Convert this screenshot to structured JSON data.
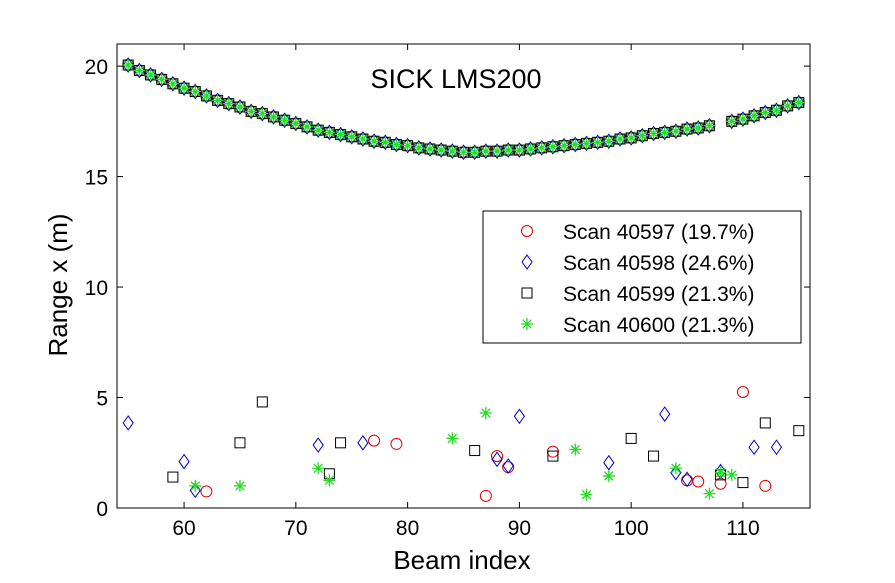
{
  "chart_data": {
    "type": "scatter",
    "title": "SICK LMS200",
    "xlabel": "Beam index",
    "ylabel": "Range x (m)",
    "xlim": [
      54,
      116
    ],
    "ylim": [
      0,
      21
    ],
    "xticks": [
      60,
      70,
      80,
      90,
      100,
      110
    ],
    "yticks": [
      0,
      5,
      10,
      15,
      20
    ],
    "legend_position": "center-right",
    "main_curve_range": [
      [
        55,
        20.05
      ],
      [
        56,
        19.8
      ],
      [
        57,
        19.6
      ],
      [
        58,
        19.4
      ],
      [
        59,
        19.2
      ],
      [
        60,
        19.0
      ],
      [
        61,
        18.85
      ],
      [
        62,
        18.65
      ],
      [
        63,
        18.45
      ],
      [
        64,
        18.3
      ],
      [
        65,
        18.15
      ],
      [
        66,
        17.95
      ],
      [
        67,
        17.85
      ],
      [
        68,
        17.7
      ],
      [
        69,
        17.55
      ],
      [
        70,
        17.4
      ],
      [
        71,
        17.25
      ],
      [
        72,
        17.1
      ],
      [
        73,
        17.0
      ],
      [
        74,
        16.9
      ],
      [
        75,
        16.8
      ],
      [
        76,
        16.7
      ],
      [
        77,
        16.6
      ],
      [
        78,
        16.55
      ],
      [
        79,
        16.45
      ],
      [
        80,
        16.4
      ],
      [
        81,
        16.3
      ],
      [
        82,
        16.25
      ],
      [
        83,
        16.2
      ],
      [
        84,
        16.15
      ],
      [
        85,
        16.1
      ],
      [
        86,
        16.1
      ],
      [
        87,
        16.15
      ],
      [
        88,
        16.15
      ],
      [
        89,
        16.2
      ],
      [
        90,
        16.2
      ],
      [
        91,
        16.25
      ],
      [
        92,
        16.3
      ],
      [
        93,
        16.35
      ],
      [
        94,
        16.4
      ],
      [
        95,
        16.45
      ],
      [
        96,
        16.5
      ],
      [
        97,
        16.55
      ],
      [
        98,
        16.6
      ],
      [
        99,
        16.7
      ],
      [
        100,
        16.75
      ],
      [
        101,
        16.85
      ],
      [
        102,
        16.95
      ],
      [
        103,
        17.0
      ],
      [
        104,
        17.05
      ],
      [
        105,
        17.15
      ],
      [
        106,
        17.2
      ],
      [
        107,
        17.3
      ],
      [
        109,
        17.5
      ],
      [
        110,
        17.6
      ],
      [
        111,
        17.75
      ],
      [
        112,
        17.9
      ],
      [
        113,
        18.0
      ],
      [
        114,
        18.2
      ],
      [
        115,
        18.35
      ]
    ],
    "series": [
      {
        "name": "Scan 40597 (19.7%)",
        "marker": "circle",
        "color": "#e00000",
        "outliers": [
          [
            62,
            0.75
          ],
          [
            77,
            3.05
          ],
          [
            79,
            2.9
          ],
          [
            87,
            0.55
          ],
          [
            88,
            2.35
          ],
          [
            89,
            1.85
          ],
          [
            93,
            2.55
          ],
          [
            105,
            1.25
          ],
          [
            106,
            1.2
          ],
          [
            108,
            1.1
          ],
          [
            110,
            5.25
          ],
          [
            112,
            1.0
          ]
        ]
      },
      {
        "name": "Scan 40598 (24.6%)",
        "marker": "diamond",
        "color": "#0000cc",
        "outliers": [
          [
            55,
            3.85
          ],
          [
            60,
            2.1
          ],
          [
            61,
            0.8
          ],
          [
            72,
            2.85
          ],
          [
            76,
            2.95
          ],
          [
            88,
            2.2
          ],
          [
            89,
            1.9
          ],
          [
            90,
            4.15
          ],
          [
            98,
            2.05
          ],
          [
            103,
            4.25
          ],
          [
            104,
            1.6
          ],
          [
            105,
            1.3
          ],
          [
            108,
            1.65
          ],
          [
            111,
            2.75
          ],
          [
            113,
            2.75
          ]
        ]
      },
      {
        "name": "Scan 40599 (21.3%)",
        "marker": "square",
        "color": "#000000",
        "outliers": [
          [
            59,
            1.4
          ],
          [
            65,
            2.95
          ],
          [
            67,
            4.8
          ],
          [
            73,
            1.55
          ],
          [
            74,
            2.95
          ],
          [
            86,
            2.6
          ],
          [
            93,
            2.35
          ],
          [
            100,
            3.15
          ],
          [
            102,
            2.35
          ],
          [
            108,
            1.5
          ],
          [
            110,
            1.15
          ],
          [
            112,
            3.85
          ],
          [
            115,
            3.5
          ]
        ]
      },
      {
        "name": "Scan 40600 (21.3%)",
        "marker": "asterisk",
        "color": "#22dd22",
        "outliers": [
          [
            61,
            1.0
          ],
          [
            65,
            1.0
          ],
          [
            72,
            1.8
          ],
          [
            73,
            1.25
          ],
          [
            84,
            3.15
          ],
          [
            87,
            4.3
          ],
          [
            95,
            2.65
          ],
          [
            96,
            0.6
          ],
          [
            98,
            1.45
          ],
          [
            104,
            1.8
          ],
          [
            107,
            0.65
          ],
          [
            108,
            1.6
          ],
          [
            109,
            1.5
          ]
        ]
      }
    ]
  }
}
